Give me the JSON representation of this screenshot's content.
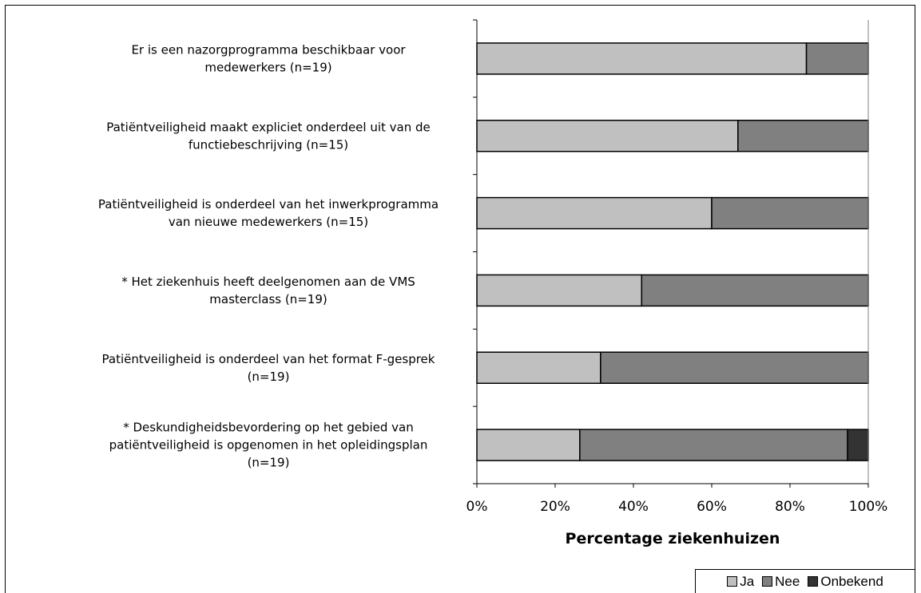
{
  "chart_data": {
    "type": "bar",
    "orientation": "horizontal",
    "stacked": true,
    "percent": true,
    "categories": [
      [
        "Er is een nazorgprogramma beschikbaar voor",
        "medewerkers (n=19)"
      ],
      [
        "Patiëntveiligheid maakt expliciet onderdeel uit van de",
        "functiebeschrijving (n=15)"
      ],
      [
        "Patiëntveiligheid is onderdeel van het inwerkprogramma",
        "van nieuwe medewerkers (n=15)"
      ],
      [
        "* Het ziekenhuis heeft deelgenomen aan de VMS",
        "masterclass (n=19)"
      ],
      [
        "Patiëntveiligheid is onderdeel van het format F-gesprek",
        "(n=19)"
      ],
      [
        "* Deskundigheidsbevordering op het gebied van",
        "patiëntveiligheid is opgenomen in het opleidingsplan",
        "(n=19)"
      ]
    ],
    "series": [
      {
        "name": "Ja",
        "color": "#c0c0c0",
        "values": [
          84.2,
          66.7,
          60.0,
          42.1,
          31.6,
          26.3
        ]
      },
      {
        "name": "Nee",
        "color": "#808080",
        "values": [
          15.8,
          33.3,
          40.0,
          57.9,
          68.4,
          68.4
        ]
      },
      {
        "name": "Onbekend",
        "color": "#333333",
        "values": [
          0,
          0,
          0,
          0,
          0,
          5.3
        ]
      }
    ],
    "xlabel": "Percentage ziekenhuizen",
    "xlim": [
      0,
      100
    ],
    "xticks": [
      "0%",
      "20%",
      "40%",
      "60%",
      "80%",
      "100%"
    ],
    "grid": false,
    "legend_position": "bottom-right"
  }
}
